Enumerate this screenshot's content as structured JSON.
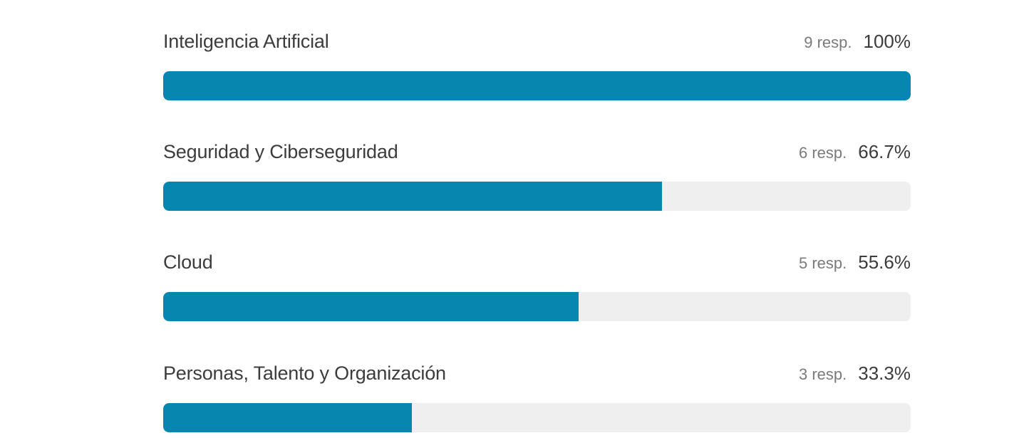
{
  "colors": {
    "bar_fill": "#0587AF",
    "bar_track": "#EFEFEF"
  },
  "chart_data": {
    "type": "bar",
    "orientation": "horizontal",
    "categories": [
      "Inteligencia Artificial",
      "Seguridad y Ciberseguridad",
      "Cloud",
      "Personas, Talento y Organización"
    ],
    "values": [
      100,
      66.7,
      55.6,
      33.3
    ],
    "responses": [
      9,
      6,
      5,
      3
    ],
    "xlim": [
      0,
      100
    ],
    "grid": false
  },
  "options": [
    {
      "label": "Inteligencia Artificial",
      "responses": "9 resp.",
      "percent": "100%",
      "fraction": 1.0
    },
    {
      "label": "Seguridad y Ciberseguridad",
      "responses": "6 resp.",
      "percent": "66.7%",
      "fraction": 0.667
    },
    {
      "label": "Cloud",
      "responses": "5 resp.",
      "percent": "55.6%",
      "fraction": 0.556
    },
    {
      "label": "Personas, Talento y Organización",
      "responses": "3 resp.",
      "percent": "33.3%",
      "fraction": 0.333
    }
  ]
}
